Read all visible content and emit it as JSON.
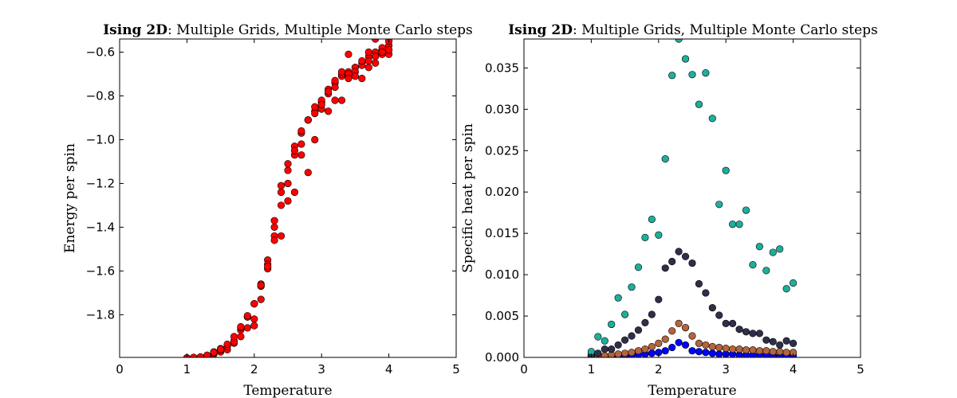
{
  "chart_data": [
    {
      "type": "scatter",
      "title_bold": "Ising 2D",
      "title_rest": ": Multiple Grids, Multiple Monte Carlo steps",
      "xlabel": "Temperature",
      "ylabel": "Energy per spin",
      "xlim": [
        0,
        5
      ],
      "ylim": [
        -1.995,
        -0.54
      ],
      "xticks": [
        0,
        1,
        2,
        3,
        4,
        5
      ],
      "yticks": [
        -1.8,
        -1.6,
        -1.4,
        -1.2,
        -1.0,
        -0.8,
        -0.6
      ],
      "ytick_labels": [
        "−1.8",
        "−1.6",
        "−1.4",
        "−1.2",
        "−1.0",
        "−0.8",
        "−0.6"
      ],
      "grid": false,
      "series": [
        {
          "color": "#ff0000",
          "points": [
            [
              1.0,
              -1.998
            ],
            [
              1.1,
              -1.996
            ],
            [
              1.2,
              -1.995
            ],
            [
              1.3,
              -1.99
            ],
            [
              1.4,
              -1.98
            ],
            [
              1.5,
              -1.97
            ],
            [
              1.6,
              -1.96
            ],
            [
              1.7,
              -1.93
            ],
            [
              1.8,
              -1.9
            ],
            [
              1.9,
              -1.86
            ],
            [
              2.0,
              -1.82
            ],
            [
              2.1,
              -1.73
            ],
            [
              2.2,
              -1.59
            ],
            [
              2.3,
              -1.44
            ],
            [
              2.4,
              -1.3
            ],
            [
              2.5,
              -1.14
            ],
            [
              2.6,
              -1.07
            ],
            [
              2.7,
              -0.97
            ],
            [
              2.8,
              -0.91
            ],
            [
              2.9,
              -0.87
            ],
            [
              3.0,
              -0.83
            ],
            [
              3.1,
              -0.77
            ],
            [
              3.2,
              -0.74
            ],
            [
              3.3,
              -0.71
            ],
            [
              3.4,
              -0.69
            ],
            [
              3.5,
              -0.67
            ],
            [
              3.6,
              -0.65
            ],
            [
              3.7,
              -0.62
            ],
            [
              3.8,
              -0.6
            ],
            [
              3.9,
              -0.59
            ],
            [
              4.0,
              -0.57
            ],
            [
              1.0,
              -1.999
            ],
            [
              1.1,
              -1.997
            ],
            [
              1.2,
              -1.993
            ],
            [
              1.3,
              -1.988
            ],
            [
              1.4,
              -1.97
            ],
            [
              1.5,
              -1.962
            ],
            [
              1.6,
              -1.94
            ],
            [
              1.7,
              -1.92
            ],
            [
              1.8,
              -1.87
            ],
            [
              1.9,
              -1.81
            ],
            [
              2.0,
              -1.75
            ],
            [
              2.1,
              -1.67
            ],
            [
              2.2,
              -1.55
            ],
            [
              2.3,
              -1.37
            ],
            [
              2.4,
              -1.21
            ],
            [
              2.5,
              -1.11
            ],
            [
              2.6,
              -1.03
            ],
            [
              2.7,
              -0.96
            ],
            [
              2.8,
              -0.91
            ],
            [
              2.9,
              -0.85
            ],
            [
              3.0,
              -0.82
            ],
            [
              3.1,
              -0.79
            ],
            [
              3.2,
              -0.76
            ],
            [
              3.3,
              -0.7
            ],
            [
              3.4,
              -0.7
            ],
            [
              3.5,
              -0.67
            ],
            [
              3.6,
              -0.66
            ],
            [
              3.7,
              -0.64
            ],
            [
              3.8,
              -0.62
            ],
            [
              3.9,
              -0.58
            ],
            [
              4.0,
              -0.55
            ],
            [
              1.0,
              -1.997
            ],
            [
              1.1,
              -1.998
            ],
            [
              1.2,
              -1.996
            ],
            [
              1.3,
              -1.987
            ],
            [
              1.4,
              -1.975
            ],
            [
              1.5,
              -1.955
            ],
            [
              1.6,
              -1.945
            ],
            [
              1.7,
              -1.925
            ],
            [
              1.8,
              -1.86
            ],
            [
              1.9,
              -1.81
            ],
            [
              2.0,
              -1.85
            ],
            [
              2.1,
              -1.66
            ],
            [
              2.2,
              -1.57
            ],
            [
              2.3,
              -1.4
            ],
            [
              2.4,
              -1.24
            ],
            [
              2.5,
              -1.2
            ],
            [
              2.6,
              -1.05
            ],
            [
              2.7,
              -1.02
            ],
            [
              2.8,
              -1.15
            ],
            [
              2.9,
              -1.0
            ],
            [
              3.0,
              -0.86
            ],
            [
              3.1,
              -0.78
            ],
            [
              3.2,
              -0.73
            ],
            [
              3.3,
              -0.69
            ],
            [
              3.4,
              -0.61
            ],
            [
              3.5,
              -0.69
            ],
            [
              3.6,
              -0.64
            ],
            [
              3.7,
              -0.6
            ],
            [
              3.8,
              -0.54
            ],
            [
              3.9,
              -0.61
            ],
            [
              4.0,
              -0.61
            ],
            [
              1.0,
              -1.998
            ],
            [
              1.1,
              -1.995
            ],
            [
              1.2,
              -1.994
            ],
            [
              1.3,
              -1.985
            ],
            [
              1.4,
              -1.972
            ],
            [
              1.5,
              -1.958
            ],
            [
              1.6,
              -1.935
            ],
            [
              1.7,
              -1.9
            ],
            [
              1.8,
              -1.855
            ],
            [
              1.9,
              -1.805
            ],
            [
              2.0,
              -1.75
            ],
            [
              2.1,
              -1.665
            ],
            [
              2.2,
              -1.58
            ],
            [
              2.3,
              -1.46
            ],
            [
              2.4,
              -1.44
            ],
            [
              2.5,
              -1.28
            ],
            [
              2.6,
              -1.24
            ],
            [
              2.7,
              -1.07
            ],
            [
              2.8,
              -0.91
            ],
            [
              2.9,
              -0.88
            ],
            [
              3.0,
              -0.84
            ],
            [
              3.1,
              -0.87
            ],
            [
              3.2,
              -0.82
            ],
            [
              3.3,
              -0.82
            ],
            [
              3.4,
              -0.72
            ],
            [
              3.5,
              -0.71
            ],
            [
              3.6,
              -0.72
            ],
            [
              3.7,
              -0.67
            ],
            [
              3.8,
              -0.65
            ],
            [
              3.9,
              -0.6
            ],
            [
              4.0,
              -0.59
            ]
          ]
        }
      ]
    },
    {
      "type": "scatter",
      "title_bold": "Ising 2D",
      "title_rest": ": Multiple Grids, Multiple Monte Carlo steps",
      "xlabel": "Temperature",
      "ylabel": "Specific heat per spin",
      "xlim": [
        0,
        5
      ],
      "ylim": [
        0,
        0.0385
      ],
      "xticks": [
        0,
        1,
        2,
        3,
        4,
        5
      ],
      "yticks": [
        0,
        0.005,
        0.01,
        0.015,
        0.02,
        0.025,
        0.03,
        0.035
      ],
      "ytick_labels": [
        "0.000",
        "0.005",
        "0.010",
        "0.015",
        "0.020",
        "0.025",
        "0.030",
        "0.035"
      ],
      "grid": false,
      "series": [
        {
          "color": "#0000ff",
          "points": [
            [
              1.0,
              0.0001
            ],
            [
              1.1,
              0.0001
            ],
            [
              1.2,
              0.0001
            ],
            [
              1.3,
              0.0002
            ],
            [
              1.4,
              0.0002
            ],
            [
              1.5,
              0.0002
            ],
            [
              1.6,
              0.0003
            ],
            [
              1.7,
              0.0003
            ],
            [
              1.8,
              0.0004
            ],
            [
              1.9,
              0.0005
            ],
            [
              2.0,
              0.0006
            ],
            [
              2.1,
              0.0008
            ],
            [
              2.2,
              0.0012
            ],
            [
              2.3,
              0.0018
            ],
            [
              2.4,
              0.0015
            ],
            [
              2.5,
              0.0008
            ],
            [
              2.6,
              0.0007
            ],
            [
              2.7,
              0.0006
            ],
            [
              2.8,
              0.0005
            ],
            [
              2.9,
              0.0004
            ],
            [
              3.0,
              0.0004
            ],
            [
              3.1,
              0.0004
            ],
            [
              3.2,
              0.0003
            ],
            [
              3.3,
              0.0003
            ],
            [
              3.4,
              0.0003
            ],
            [
              3.5,
              0.0003
            ],
            [
              3.6,
              0.0003
            ],
            [
              3.7,
              0.0002
            ],
            [
              3.8,
              0.0002
            ],
            [
              3.9,
              0.0002
            ],
            [
              4.0,
              0.0002
            ]
          ]
        },
        {
          "color": "#b5643c",
          "points": [
            [
              1.0,
              0.0002
            ],
            [
              1.1,
              0.0002
            ],
            [
              1.2,
              0.0002
            ],
            [
              1.3,
              0.0003
            ],
            [
              1.4,
              0.0004
            ],
            [
              1.5,
              0.0005
            ],
            [
              1.6,
              0.0006
            ],
            [
              1.7,
              0.0008
            ],
            [
              1.8,
              0.001
            ],
            [
              1.9,
              0.0013
            ],
            [
              2.0,
              0.0017
            ],
            [
              2.1,
              0.0022
            ],
            [
              2.2,
              0.0032
            ],
            [
              2.3,
              0.0041
            ],
            [
              2.4,
              0.0036
            ],
            [
              2.5,
              0.0026
            ],
            [
              2.6,
              0.0017
            ],
            [
              2.7,
              0.0015
            ],
            [
              2.8,
              0.0013
            ],
            [
              2.9,
              0.0012
            ],
            [
              3.0,
              0.0011
            ],
            [
              3.1,
              0.001
            ],
            [
              3.2,
              0.001
            ],
            [
              3.3,
              0.0009
            ],
            [
              3.4,
              0.0009
            ],
            [
              3.5,
              0.0008
            ],
            [
              3.6,
              0.0008
            ],
            [
              3.7,
              0.0007
            ],
            [
              3.8,
              0.0007
            ],
            [
              3.9,
              0.0006
            ],
            [
              4.0,
              0.0006
            ]
          ]
        },
        {
          "color": "#2f2f4c",
          "points": [
            [
              1.0,
              0.0003
            ],
            [
              1.1,
              0.0005
            ],
            [
              1.2,
              0.001
            ],
            [
              1.3,
              0.001
            ],
            [
              1.4,
              0.0015
            ],
            [
              1.5,
              0.0021
            ],
            [
              1.6,
              0.0026
            ],
            [
              1.7,
              0.0033
            ],
            [
              1.8,
              0.0042
            ],
            [
              1.9,
              0.0052
            ],
            [
              2.0,
              0.007
            ],
            [
              2.1,
              0.0108
            ],
            [
              2.2,
              0.0116
            ],
            [
              2.3,
              0.0128
            ],
            [
              2.4,
              0.0122
            ],
            [
              2.5,
              0.0114
            ],
            [
              2.6,
              0.0089
            ],
            [
              2.7,
              0.0078
            ],
            [
              2.8,
              0.006
            ],
            [
              2.9,
              0.0051
            ],
            [
              3.0,
              0.0041
            ],
            [
              3.1,
              0.0041
            ],
            [
              3.2,
              0.0034
            ],
            [
              3.3,
              0.0031
            ],
            [
              3.4,
              0.0029
            ],
            [
              3.5,
              0.0029
            ],
            [
              3.6,
              0.0021
            ],
            [
              3.7,
              0.0019
            ],
            [
              3.8,
              0.0015
            ],
            [
              3.9,
              0.002
            ],
            [
              4.0,
              0.0017
            ]
          ]
        },
        {
          "color": "#1fae9c",
          "points": [
            [
              1.0,
              0.0007
            ],
            [
              1.1,
              0.0025
            ],
            [
              1.2,
              0.002
            ],
            [
              1.3,
              0.004
            ],
            [
              1.4,
              0.0072
            ],
            [
              1.5,
              0.0052
            ],
            [
              1.6,
              0.0085
            ],
            [
              1.7,
              0.0109
            ],
            [
              1.8,
              0.0145
            ],
            [
              1.9,
              0.0167
            ],
            [
              2.0,
              0.0148
            ],
            [
              2.1,
              0.024
            ],
            [
              2.2,
              0.0341
            ],
            [
              2.3,
              0.0385
            ],
            [
              2.4,
              0.0361
            ],
            [
              2.5,
              0.0342
            ],
            [
              2.6,
              0.0306
            ],
            [
              2.7,
              0.0344
            ],
            [
              2.8,
              0.0289
            ],
            [
              2.9,
              0.0185
            ],
            [
              3.0,
              0.0226
            ],
            [
              3.1,
              0.0161
            ],
            [
              3.2,
              0.0161
            ],
            [
              3.3,
              0.0178
            ],
            [
              3.4,
              0.0112
            ],
            [
              3.5,
              0.0134
            ],
            [
              3.6,
              0.0105
            ],
            [
              3.7,
              0.0127
            ],
            [
              3.8,
              0.0131
            ],
            [
              3.9,
              0.0083
            ],
            [
              4.0,
              0.009
            ]
          ]
        }
      ]
    }
  ]
}
